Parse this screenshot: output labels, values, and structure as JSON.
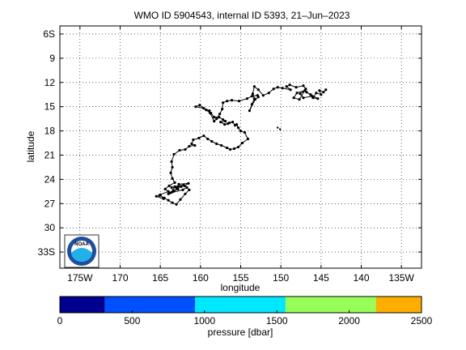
{
  "chart_data": [
    {
      "type": "scatter",
      "title": "WMO ID 5904543, internal ID 5393, 21–Jun–2023",
      "xlabel": "longitude",
      "ylabel": "latitude",
      "x_units": "longitude (negative = W)",
      "y_units": "latitude (negative = S)",
      "xlim": [
        -177.5,
        -132.5
      ],
      "ylim": [
        -35,
        -5
      ],
      "y_inverted_display": "south at bottom",
      "grid": "dotted",
      "x_ticks": [
        -175,
        -170,
        -165,
        -160,
        -155,
        -150,
        -145,
        -140,
        -135
      ],
      "x_tick_labels": [
        "175W",
        "170",
        "165",
        "160",
        "155",
        "150",
        "145",
        "140",
        "135W"
      ],
      "y_ticks": [
        -6,
        -9,
        -12,
        -15,
        -18,
        -21,
        -24,
        -27,
        -30,
        -33
      ],
      "y_tick_labels": [
        "6S",
        "9",
        "12",
        "15",
        "18",
        "21",
        "24",
        "27",
        "30",
        "33S"
      ],
      "series": [
        {
          "line_color": "#000000",
          "marker_color": "#000000",
          "x": [
            -144.4,
            -144.7,
            -145.2,
            -145.0,
            -145.6,
            -146.0,
            -145.4,
            -146.3,
            -146.8,
            -146.1,
            -147.2,
            -147.6,
            -147.0,
            -148.0,
            -148.4,
            -147.7,
            -146.9,
            -147.2,
            -148.1,
            -148.9,
            -149.3,
            -148.8,
            -149.8,
            -150.4,
            -150.9,
            -151.5,
            -152.2,
            -152.8,
            -153.3,
            -153.5,
            -153.3,
            -153.6,
            -153.9,
            -153.2,
            -152.8,
            -152.9,
            -153.6,
            -154.2,
            -155.2,
            -156.1,
            -156.7,
            -157.2,
            -157.3,
            -157.6,
            -158.0,
            -158.3,
            -158.8,
            -159.3,
            -160.1,
            -160.6,
            -159.6,
            -158.9,
            -158.7,
            -158.3,
            -157.7,
            -157.2,
            -156.9,
            -157.5,
            -157.0,
            -156.6,
            -156.4,
            -156.0,
            -155.7,
            -155.5,
            -155.3,
            -155.0,
            -154.5,
            -154.1,
            -154.8,
            -155.3,
            -155.8,
            -156.3,
            -156.7,
            -157.4,
            -158.0,
            -158.6,
            -159.1,
            -159.6,
            -160.2,
            -160.9,
            -161.1,
            -160.7,
            -161.4,
            -161.9,
            -162.6,
            -163.3,
            -163.6,
            -163.5,
            -163.7,
            -163.5,
            -163.2,
            -163.9,
            -164.4,
            -164.0,
            -165.0,
            -164.6,
            -165.5,
            -165.1,
            -164.5,
            -164.0,
            -163.5,
            -163.0,
            -162.5,
            -161.9,
            -161.4,
            -162.0,
            -161.5,
            -162.7,
            -163.0,
            -162.4,
            -163.6,
            -163.4,
            -162.8,
            -163.8,
            -162.2,
            -161.7,
            -162.1,
            -163.2,
            -163.6,
            -164.0,
            -163.3
          ],
          "y": [
            -12.9,
            -13.2,
            -13.0,
            -13.5,
            -13.3,
            -13.9,
            -14.0,
            -13.5,
            -13.2,
            -13.7,
            -13.9,
            -13.4,
            -13.0,
            -13.3,
            -13.9,
            -14.1,
            -12.8,
            -12.4,
            -12.6,
            -12.3,
            -12.5,
            -12.9,
            -12.7,
            -12.6,
            -12.8,
            -13.3,
            -13.6,
            -12.9,
            -12.5,
            -13.4,
            -14.0,
            -14.7,
            -15.5,
            -14.1,
            -13.8,
            -13.6,
            -13.7,
            -14.0,
            -14.3,
            -14.2,
            -14.3,
            -14.5,
            -15.3,
            -15.9,
            -16.5,
            -16.8,
            -15.8,
            -15.4,
            -14.8,
            -15.0,
            -15.2,
            -15.5,
            -15.8,
            -16.3,
            -16.3,
            -16.6,
            -16.8,
            -16.9,
            -17.2,
            -17.1,
            -17.0,
            -16.9,
            -17.3,
            -17.2,
            -17.6,
            -18.0,
            -18.2,
            -19.0,
            -19.5,
            -20.0,
            -20.2,
            -20.3,
            -20.1,
            -19.8,
            -19.6,
            -19.3,
            -19.0,
            -18.6,
            -18.9,
            -19.1,
            -19.6,
            -19.8,
            -19.9,
            -20.3,
            -20.4,
            -20.9,
            -21.8,
            -22.5,
            -23.2,
            -23.9,
            -24.4,
            -24.8,
            -25.2,
            -25.5,
            -25.9,
            -26.4,
            -26.1,
            -26.0,
            -26.3,
            -26.6,
            -26.9,
            -27.1,
            -26.5,
            -25.8,
            -25.3,
            -24.8,
            -24.5,
            -24.6,
            -25.1,
            -24.9,
            -25.0,
            -25.5,
            -25.2,
            -25.7,
            -25.3,
            -25.0,
            -24.7,
            -24.9,
            -25.6,
            -25.8,
            -25.4
          ],
          "isolated_points": [
            {
              "x": -150.4,
              "y": -17.6
            },
            {
              "x": -150.1,
              "y": -17.8
            }
          ]
        }
      ],
      "colorbar": {
        "label": "pressure [dbar]",
        "ticks": [
          0,
          500,
          1000,
          1500,
          2000,
          2500
        ],
        "tick_labels": [
          "0",
          "500",
          "1000",
          "1500",
          "2000",
          "2500"
        ],
        "range": [
          0,
          2500
        ],
        "bands": [
          {
            "from": 0,
            "to": 310,
            "color": "#00008f"
          },
          {
            "from": 310,
            "to": 935,
            "color": "#0050ff"
          },
          {
            "from": 935,
            "to": 1560,
            "color": "#00e8ff"
          },
          {
            "from": 1560,
            "to": 2185,
            "color": "#98ff5a"
          },
          {
            "from": 2185,
            "to": 2500,
            "color": "#ffae00"
          }
        ]
      }
    }
  ],
  "logo": {
    "text": "NOAA",
    "outer_color": "#1f4e9c",
    "inner_color": "#22b0e8"
  }
}
